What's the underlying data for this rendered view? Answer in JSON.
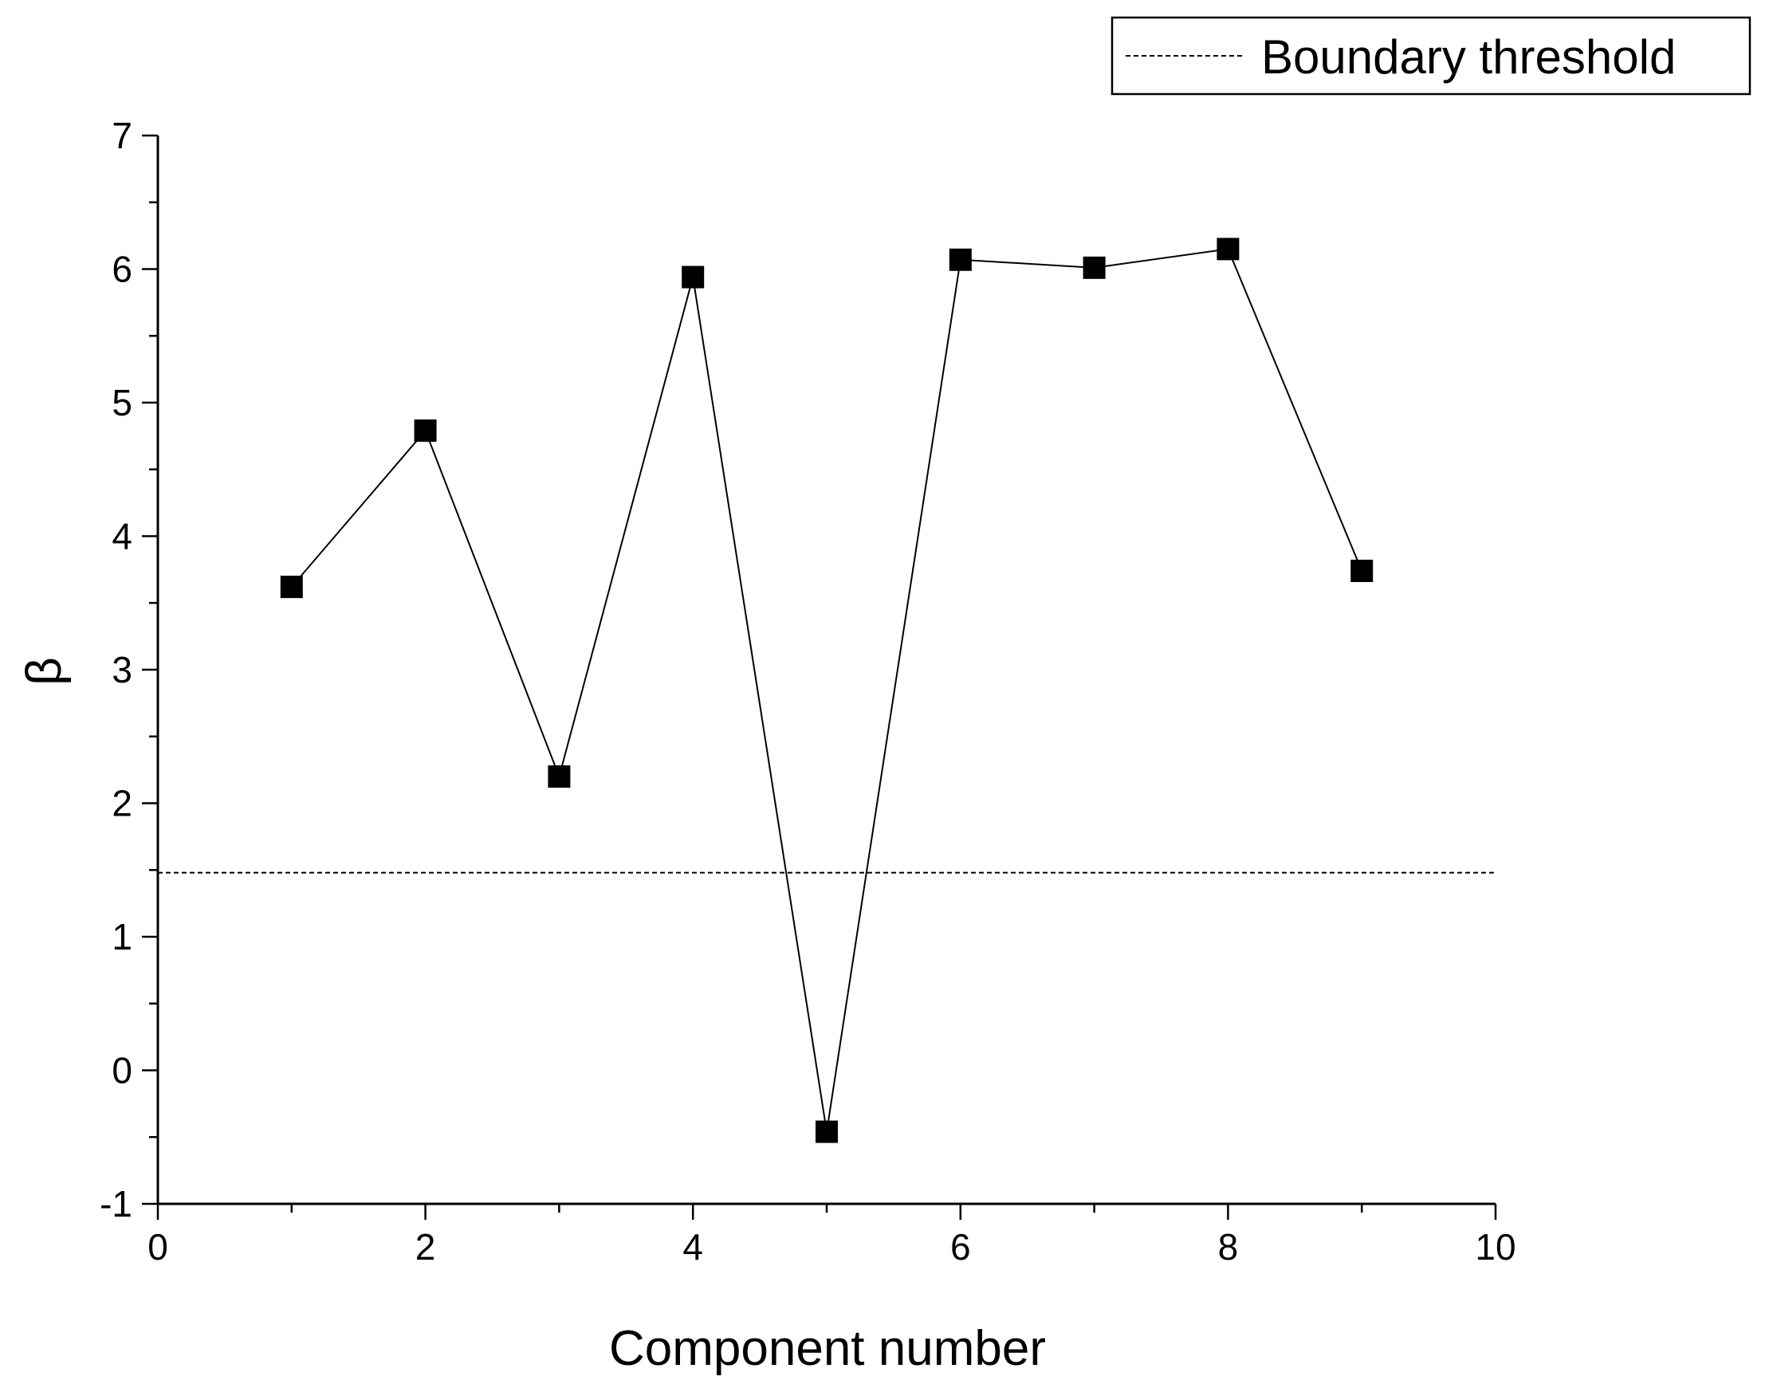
{
  "chart_data": {
    "type": "line",
    "title": "",
    "xlabel": "Component number",
    "ylabel": "β",
    "xlim": [
      0,
      10
    ],
    "ylim": [
      -1,
      7
    ],
    "x_ticks": [
      "0",
      "2",
      "4",
      "6",
      "8",
      "10"
    ],
    "y_ticks": [
      "-1",
      "0",
      "1",
      "2",
      "3",
      "4",
      "5",
      "6",
      "7"
    ],
    "grid": false,
    "legend_position": "top-right",
    "series": [
      {
        "marker": "square",
        "line_style": "solid",
        "x": [
          1,
          2,
          3,
          4,
          5,
          6,
          7,
          8,
          9
        ],
        "y": [
          3.62,
          4.79,
          2.2,
          5.94,
          -0.46,
          6.07,
          6.01,
          6.15,
          3.74
        ]
      }
    ],
    "reference_lines": [
      {
        "name": "Boundary threshold",
        "orientation": "horizontal",
        "y": 1.48,
        "line_style": "dashed"
      }
    ],
    "colors": {
      "line": "#000000",
      "marker": "#000000",
      "axis": "#000000"
    }
  }
}
